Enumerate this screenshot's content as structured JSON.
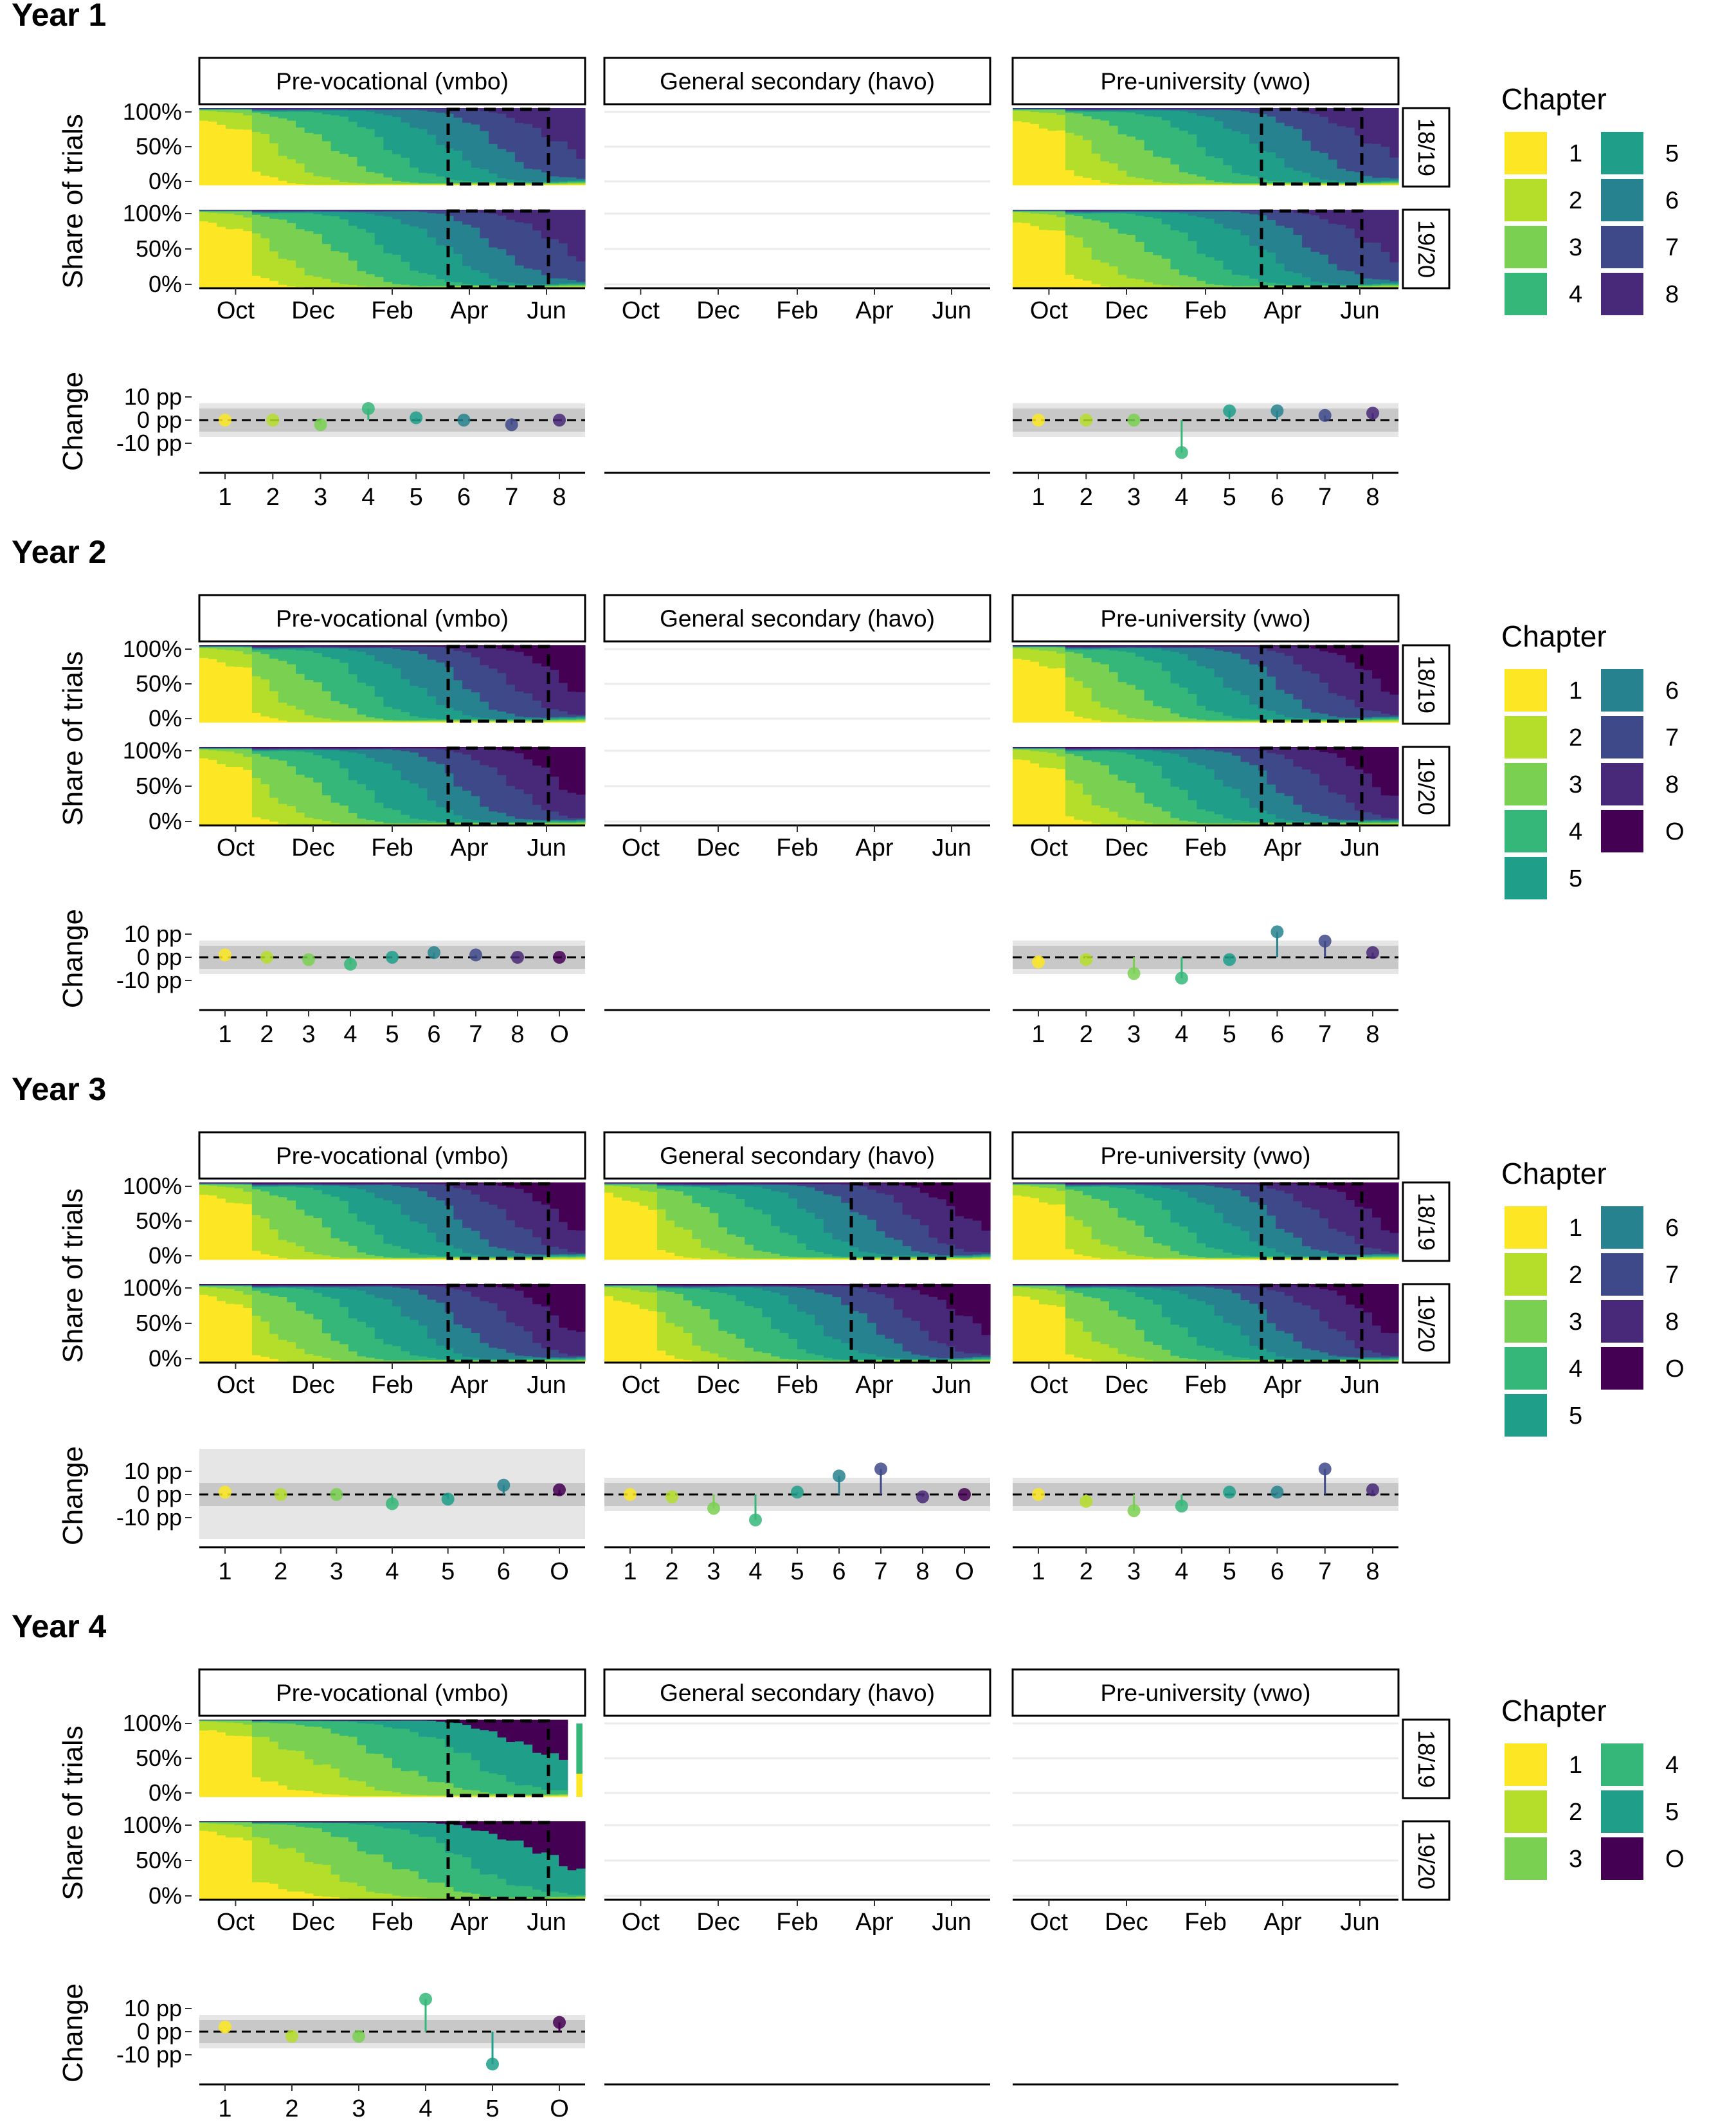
{
  "chart_data": {
    "type": "area",
    "y_title": "Share of trials",
    "change_title": "Change",
    "y_ticks": [
      "100%",
      "50%",
      "0%"
    ],
    "change_ticks": [
      "10 pp",
      "0 pp",
      "-10 pp"
    ],
    "x_ticks": [
      "Oct",
      "Dec",
      "Feb",
      "Apr",
      "Jun"
    ],
    "school_types": [
      "Pre-vocational (vmbo)",
      "General secondary (havo)",
      "Pre-university (vwo)"
    ],
    "cohorts": [
      "18/19",
      "19/20"
    ],
    "legend_title": "Chapter",
    "highlight_window": "Apr – Jun (dashed box)",
    "colors": {
      "1": "#fde725",
      "2": "#b5de2b",
      "3": "#7ad151",
      "4": "#35b779",
      "5": "#1f9e89",
      "6": "#26828e",
      "7": "#3e4989",
      "8": "#482878",
      "O": "#440154"
    },
    "years": [
      {
        "label": "Year 1",
        "chapters": [
          "1",
          "2",
          "3",
          "4",
          "5",
          "6",
          "7",
          "8"
        ],
        "legend_cols": [
          [
            "1",
            "2",
            "3",
            "4"
          ],
          [
            "5",
            "6",
            "7",
            "8"
          ]
        ],
        "panels": [
          {
            "school": "Pre-vocational (vmbo)",
            "has_data": true,
            "changes": [
              0,
              0,
              -2,
              5,
              1,
              0,
              -2,
              0
            ]
          },
          {
            "school": "General secondary (havo)",
            "has_data": false,
            "changes": []
          },
          {
            "school": "Pre-university (vwo)",
            "has_data": true,
            "changes": [
              0,
              0,
              0,
              -14,
              4,
              4,
              2,
              3
            ]
          }
        ]
      },
      {
        "label": "Year 2",
        "chapters": [
          "1",
          "2",
          "3",
          "4",
          "5",
          "6",
          "7",
          "8",
          "O"
        ],
        "legend_cols": [
          [
            "1",
            "2",
            "3",
            "4",
            "5"
          ],
          [
            "6",
            "7",
            "8",
            "O"
          ]
        ],
        "panels": [
          {
            "school": "Pre-vocational (vmbo)",
            "has_data": true,
            "changes": [
              1,
              0,
              -1,
              -3,
              0,
              2,
              1,
              0,
              0
            ]
          },
          {
            "school": "General secondary (havo)",
            "has_data": false,
            "changes": []
          },
          {
            "school": "Pre-university (vwo)",
            "has_data": true,
            "changes": [
              -2,
              -1,
              -7,
              -9,
              -1,
              11,
              7,
              2
            ]
          }
        ]
      },
      {
        "label": "Year 3",
        "chapters": [
          "1",
          "2",
          "3",
          "4",
          "5",
          "6",
          "7",
          "8",
          "O"
        ],
        "legend_cols": [
          [
            "1",
            "2",
            "3",
            "4",
            "5"
          ],
          [
            "6",
            "7",
            "8",
            "O"
          ]
        ],
        "panels": [
          {
            "school": "Pre-vocational (vmbo)",
            "has_data": true,
            "changes": [
              1,
              0,
              0,
              -4,
              -2,
              4,
              2
            ]
          },
          {
            "school": "General secondary (havo)",
            "has_data": true,
            "changes": [
              0,
              -1,
              -6,
              -11,
              1,
              8,
              11,
              -1,
              0
            ]
          },
          {
            "school": "Pre-university (vwo)",
            "has_data": true,
            "changes": [
              0,
              -3,
              -7,
              -5,
              1,
              1,
              11,
              2
            ]
          }
        ]
      },
      {
        "label": "Year 4",
        "chapters": [
          "1",
          "2",
          "3",
          "4",
          "5",
          "O"
        ],
        "legend_cols": [
          [
            "1",
            "2",
            "3"
          ],
          [
            "4",
            "5",
            "O"
          ]
        ],
        "panels": [
          {
            "school": "Pre-vocational (vmbo)",
            "has_data": true,
            "changes": [
              2,
              -2,
              -2,
              14,
              -14,
              4
            ]
          },
          {
            "school": "General secondary (havo)",
            "has_data": false,
            "changes": []
          },
          {
            "school": "Pre-university (vwo)",
            "has_data": false,
            "changes": []
          }
        ]
      }
    ],
    "change_axis_labels": [
      [
        [
          "1",
          "2",
          "3",
          "4",
          "5",
          "6",
          "7",
          "8"
        ],
        [],
        [
          "1",
          "2",
          "3",
          "4",
          "5",
          "6",
          "7",
          "8"
        ]
      ],
      [
        [
          "1",
          "2",
          "3",
          "4",
          "5",
          "6",
          "7",
          "8",
          "O"
        ],
        [],
        [
          "1",
          "2",
          "3",
          "4",
          "5",
          "6",
          "7",
          "8"
        ]
      ],
      [
        [
          "1",
          "2",
          "3",
          "4",
          "5",
          "6",
          "O"
        ],
        [
          "1",
          "2",
          "3",
          "4",
          "5",
          "6",
          "7",
          "8",
          "O"
        ],
        [
          "1",
          "2",
          "3",
          "4",
          "5",
          "6",
          "7",
          "8"
        ]
      ],
      [
        [
          "1",
          "2",
          "3",
          "4",
          "5",
          "O"
        ],
        [],
        []
      ]
    ]
  }
}
